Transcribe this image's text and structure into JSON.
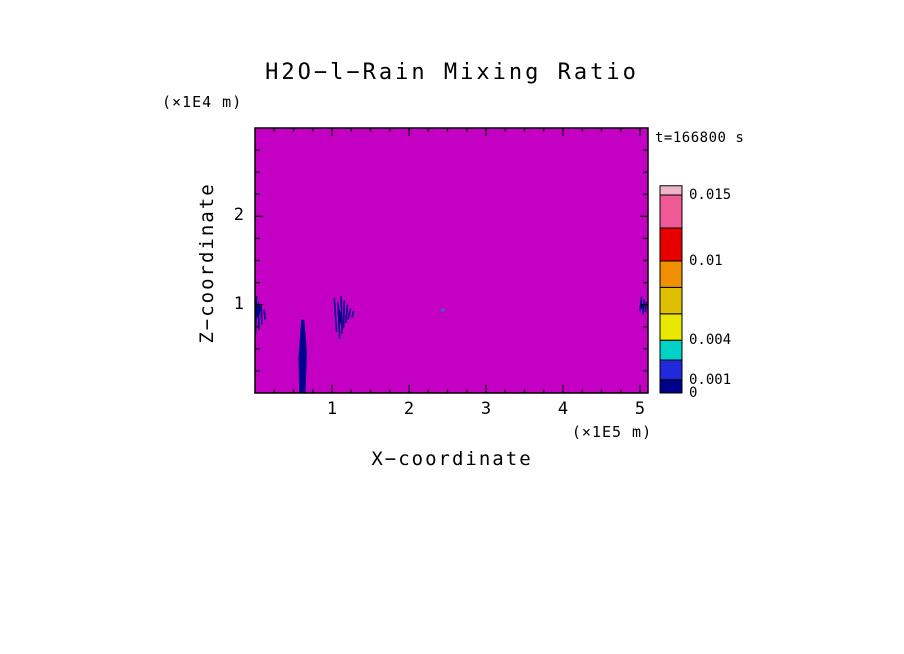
{
  "chart_data": {
    "type": "heatmap",
    "title": "H2O−l−Rain Mixing Ratio",
    "time_label": "t=166800 s",
    "xlabel": "X−coordinate",
    "x_unit": "(×1E5 m)",
    "ylabel": "Z−coordinate",
    "y_unit": "(×1E4 m)",
    "xlim": [
      0,
      5.1
    ],
    "ylim": [
      0,
      3.0
    ],
    "x_major_ticks": [
      1,
      2,
      3,
      4,
      5
    ],
    "y_major_ticks": [
      1,
      2
    ],
    "x_minor_step": 0.25,
    "y_minor_step": 0.25,
    "grid": false,
    "legend_position": "right",
    "field": {
      "background_value": 0,
      "background_color": "#C400C4",
      "feature_color": "#00008C",
      "description": "Near-zero rain mixing ratio everywhere (magenta background) with weak rain shafts (~0.001) near z≈1 (×1E4 m) at x≈0.05, 0.6, 1.15, 2.44 and 5.05 (×1E5 m); the shaft at x≈0.6 reaches the surface."
    },
    "features": [
      {
        "type": "polygon",
        "color": "#00008C",
        "points": [
          [
            0.575,
            0
          ],
          [
            0.655,
            0
          ],
          [
            0.675,
            0.45
          ],
          [
            0.64,
            0.83
          ],
          [
            0.6,
            0.83
          ],
          [
            0.565,
            0.4
          ]
        ]
      },
      {
        "type": "strokes",
        "color": "#00008C",
        "width": 1.6,
        "segments": [
          [
            0.005,
            0.66,
            0.02,
            1.09
          ],
          [
            0.05,
            0.72,
            0.045,
            1.02
          ],
          [
            0.09,
            0.78,
            0.08,
            0.98
          ],
          [
            0.13,
            0.84,
            0.12,
            0.94
          ],
          [
            0.03,
            0.88,
            0.05,
            0.97,
            4
          ],
          [
            1.03,
            1.07,
            1.06,
            0.7
          ],
          [
            1.08,
            1.02,
            1.1,
            0.62
          ],
          [
            1.12,
            1.09,
            1.13,
            0.68
          ],
          [
            1.16,
            1.04,
            1.15,
            0.74
          ],
          [
            1.2,
            0.99,
            1.18,
            0.8
          ],
          [
            1.24,
            0.95,
            1.21,
            0.84
          ],
          [
            1.09,
            0.92,
            1.12,
            0.8,
            3
          ],
          [
            1.28,
            0.92,
            1.26,
            0.86
          ],
          [
            5.0,
            0.93,
            5.02,
            1.08
          ],
          [
            5.04,
            0.9,
            5.05,
            1.05
          ],
          [
            5.07,
            0.92,
            5.08,
            1.02
          ],
          [
            5.02,
            0.97,
            5.05,
            1.0,
            3
          ]
        ]
      },
      {
        "type": "dot",
        "color": "#5A50C8",
        "x": 2.44,
        "z": 0.94,
        "r": 2
      }
    ],
    "colorbar": {
      "position": "right",
      "levels": [
        0,
        0.001,
        0.0025,
        0.004,
        0.006,
        0.008,
        0.01,
        0.0125,
        0.015,
        0.0157
      ],
      "colors": [
        "#00008C",
        "#2228DC",
        "#00D2C8",
        "#E8E800",
        "#DFC000",
        "#F09000",
        "#E80000",
        "#F05A96",
        "#F0B4C8"
      ],
      "labeled_values": [
        {
          "value": 0.015,
          "label": "0.015"
        },
        {
          "value": 0.01,
          "label": "0.01"
        },
        {
          "value": 0.004,
          "label": "0.004"
        },
        {
          "value": 0.001,
          "label": "0.001"
        },
        {
          "value": 0,
          "label": "0"
        }
      ]
    }
  }
}
